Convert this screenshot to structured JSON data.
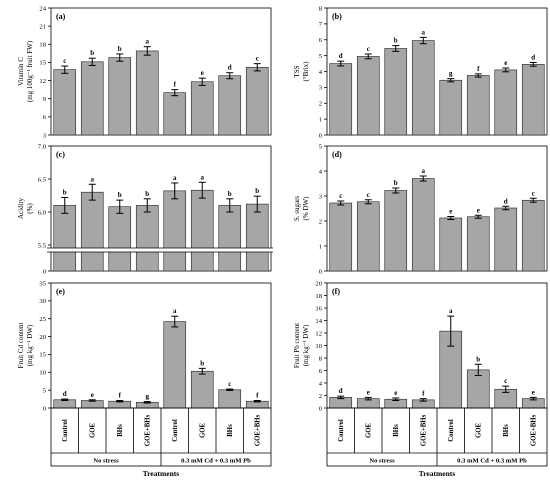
{
  "chart_data": [
    {
      "id": "a",
      "type": "bar",
      "panel_label": "(a)",
      "ylabel": [
        "Vitamin C",
        "(mg 100g⁻¹ fruit FW)"
      ],
      "ylim": [
        3,
        24
      ],
      "yticks": [
        3,
        6,
        9,
        12,
        15,
        18,
        21,
        24
      ],
      "categories": [
        "Control",
        "GOE",
        "BHs",
        "GOE+BHs",
        "Control",
        "GOE",
        "BHs",
        "GOE+BHs"
      ],
      "values": [
        13.8,
        15.1,
        15.8,
        16.9,
        10.0,
        11.8,
        12.8,
        14.2
      ],
      "errors": [
        0.6,
        0.6,
        0.6,
        0.7,
        0.5,
        0.6,
        0.5,
        0.6
      ],
      "letters": [
        "c",
        "b",
        "b",
        "a",
        "f",
        "e",
        "d",
        "c"
      ]
    },
    {
      "id": "b",
      "type": "bar",
      "panel_label": "(b)",
      "ylabel": [
        "TSS",
        "(°Brix)"
      ],
      "ylim": [
        0,
        8
      ],
      "yticks": [
        0,
        1,
        2,
        3,
        4,
        5,
        6,
        7,
        8
      ],
      "categories": [
        "Control",
        "GOE",
        "BHs",
        "GOE+BHs",
        "Control",
        "GOE",
        "BHs",
        "GOE+BHs"
      ],
      "values": [
        4.5,
        4.95,
        5.45,
        5.95,
        3.45,
        3.75,
        4.1,
        4.45
      ],
      "errors": [
        0.15,
        0.15,
        0.18,
        0.2,
        0.1,
        0.1,
        0.12,
        0.12
      ],
      "letters": [
        "d",
        "c",
        "b",
        "a",
        "g",
        "f",
        "e",
        "d"
      ]
    },
    {
      "id": "c",
      "type": "bar",
      "panel_label": "(c)",
      "ylabel": [
        "Acidity",
        "(%)"
      ],
      "ylim": [
        5.5,
        7.0
      ],
      "yticks": [
        0,
        5.5,
        6.0,
        6.5,
        7.0
      ],
      "axis_break": true,
      "categories": [
        "Control",
        "GOE",
        "BHs",
        "GOE+BHs",
        "Control",
        "GOE",
        "BHs",
        "GOE+BHs"
      ],
      "values": [
        6.1,
        6.3,
        6.08,
        6.1,
        6.32,
        6.33,
        6.1,
        6.12
      ],
      "errors": [
        0.12,
        0.12,
        0.1,
        0.1,
        0.12,
        0.12,
        0.1,
        0.12
      ],
      "letters": [
        "b",
        "a",
        "b",
        "b",
        "a",
        "a",
        "b",
        "b"
      ]
    },
    {
      "id": "d",
      "type": "bar",
      "panel_label": "(d)",
      "ylabel": [
        "S. sugars",
        "(% DW)"
      ],
      "ylim": [
        0,
        5
      ],
      "yticks": [
        0,
        1,
        2,
        3,
        4,
        5
      ],
      "categories": [
        "Control",
        "GOE",
        "BHs",
        "GOE+BHs",
        "Control",
        "GOE",
        "BHs",
        "GOE+BHs"
      ],
      "values": [
        2.72,
        2.77,
        3.22,
        3.7,
        2.12,
        2.17,
        2.52,
        2.83
      ],
      "errors": [
        0.08,
        0.08,
        0.1,
        0.1,
        0.06,
        0.06,
        0.07,
        0.08
      ],
      "letters": [
        "c",
        "c",
        "b",
        "a",
        "e",
        "e",
        "d",
        "c"
      ]
    },
    {
      "id": "e",
      "type": "bar",
      "panel_label": "(e)",
      "ylabel": [
        "Fruit Cd content",
        "(mg kg⁻¹ DW)"
      ],
      "ylim": [
        0,
        35
      ],
      "yticks": [
        0,
        5,
        10,
        15,
        20,
        25,
        30,
        35
      ],
      "categories": [
        "Control",
        "GOE",
        "BHs",
        "GOE+BHs",
        "Control",
        "GOE",
        "BHs",
        "GOE+BHs"
      ],
      "values": [
        2.3,
        2.1,
        1.9,
        1.6,
        24.2,
        10.3,
        5.1,
        1.9
      ],
      "errors": [
        0.2,
        0.2,
        0.2,
        0.2,
        1.5,
        0.8,
        0.2,
        0.2
      ],
      "letters": [
        "d",
        "e",
        "f",
        "g",
        "a",
        "b",
        "c",
        "f"
      ]
    },
    {
      "id": "f",
      "type": "bar",
      "panel_label": "(f)",
      "ylabel": [
        "Fruit Pb content",
        "(mg kg⁻¹ DW)"
      ],
      "ylim": [
        0,
        20
      ],
      "yticks": [
        0,
        2,
        4,
        6,
        8,
        10,
        12,
        14,
        16,
        18,
        20
      ],
      "categories": [
        "Control",
        "GOE",
        "BHs",
        "GOE+BHs",
        "Control",
        "GOE",
        "BHs",
        "GOE+BHs"
      ],
      "values": [
        1.7,
        1.5,
        1.4,
        1.3,
        12.3,
        6.1,
        3.0,
        1.5
      ],
      "errors": [
        0.2,
        0.2,
        0.2,
        0.2,
        2.4,
        0.9,
        0.5,
        0.2
      ],
      "letters": [
        "d",
        "e",
        "e",
        "f",
        "a",
        "b",
        "c",
        "e"
      ]
    }
  ],
  "groups": [
    "No stress",
    "0.3 mM Cd + 0.3 mM Pb"
  ],
  "x_title": "Treatments"
}
